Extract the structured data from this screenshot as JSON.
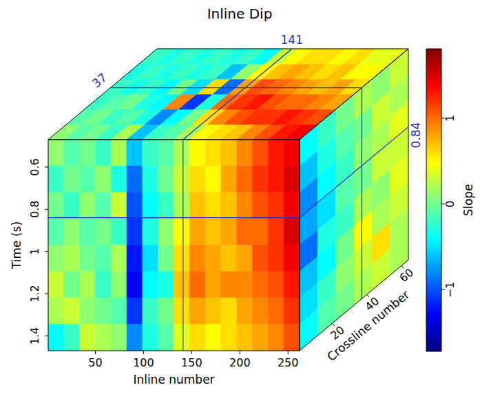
{
  "chart_data": {
    "type": "cube",
    "title": "Inline Dip",
    "x_label": "Inline number",
    "y_label": "Time (s)",
    "z_label": "Crossline number",
    "colorbar_label": "Slope",
    "xlim": [
      1,
      262
    ],
    "ylim": [
      0.47,
      1.47
    ],
    "zlim": [
      1,
      64
    ],
    "xticks": [
      50,
      100,
      150,
      200,
      250
    ],
    "yticks": [
      0.6,
      0.8,
      1,
      1.2,
      1.4
    ],
    "zticks": [
      20,
      40,
      60
    ],
    "color_range": [
      -1.72,
      1.81
    ],
    "color_ticks": [
      {
        "value": -1,
        "label": "−1"
      },
      0,
      1
    ],
    "slices": {
      "crossline": 37,
      "inline": 141,
      "time": 0.84
    },
    "cells": {
      "front": [
        [
          0.1,
          -0.1,
          0.0,
          -0.2,
          0.2,
          -0.6,
          -0.2,
          -0.1,
          0.2,
          0.5,
          0.6,
          0.7,
          0.9,
          1.1,
          1.3,
          1.4
        ],
        [
          -0.2,
          0.0,
          -0.1,
          0.1,
          -0.3,
          -0.9,
          -0.3,
          0.0,
          0.3,
          0.6,
          0.5,
          0.8,
          1.0,
          1.2,
          1.3,
          1.5
        ],
        [
          0.0,
          -0.2,
          0.1,
          -0.1,
          0.3,
          -1.0,
          -0.4,
          -0.2,
          0.2,
          0.7,
          0.6,
          0.7,
          0.9,
          1.1,
          1.2,
          1.4
        ],
        [
          -0.1,
          0.1,
          -0.1,
          0.0,
          -0.2,
          -1.1,
          -0.3,
          0.1,
          0.5,
          0.8,
          0.7,
          0.8,
          1.0,
          1.0,
          1.2,
          1.5
        ],
        [
          0.1,
          0.2,
          0.0,
          -0.1,
          0.2,
          -1.2,
          -0.5,
          0.0,
          0.6,
          0.9,
          0.8,
          0.7,
          0.8,
          1.1,
          1.2,
          1.4
        ],
        [
          0.3,
          0.0,
          0.2,
          -0.2,
          0.1,
          -1.3,
          -0.4,
          -0.3,
          0.7,
          1.0,
          0.8,
          0.9,
          0.9,
          1.0,
          1.1,
          1.3
        ],
        [
          0.2,
          0.3,
          0.1,
          0.0,
          -0.1,
          -1.1,
          -0.2,
          0.0,
          0.6,
          0.8,
          0.7,
          0.6,
          0.8,
          0.9,
          1.0,
          1.2
        ],
        [
          -0.4,
          -0.2,
          0.3,
          0.2,
          0.1,
          -0.8,
          -0.3,
          -0.1,
          0.4,
          0.6,
          0.5,
          0.6,
          0.7,
          0.8,
          0.9,
          1.1
        ]
      ],
      "top": [
        [
          0.1,
          -0.1,
          0.0,
          -0.2,
          0.2,
          -0.6,
          -0.2,
          -0.1,
          0.2,
          0.5,
          0.6,
          0.7,
          0.9,
          1.1,
          1.3,
          1.4
        ],
        [
          -0.1,
          0.0,
          -0.2,
          -0.1,
          -0.3,
          -0.8,
          -0.4,
          0.0,
          0.6,
          0.9,
          1.1,
          1.2,
          1.2,
          1.3,
          1.2,
          1.1
        ],
        [
          -0.2,
          -0.1,
          0.0,
          -0.3,
          -0.4,
          0.9,
          -1.1,
          -0.3,
          1.0,
          1.2,
          1.3,
          1.1,
          1.0,
          1.0,
          0.9,
          0.8
        ],
        [
          -0.2,
          -0.3,
          -0.2,
          -0.4,
          0.0,
          -0.5,
          0.6,
          -0.9,
          0.8,
          1.1,
          1.0,
          0.9,
          0.8,
          0.7,
          0.8,
          0.6
        ],
        [
          -0.3,
          -0.2,
          -0.3,
          -0.2,
          -0.3,
          -0.2,
          -0.6,
          0.1,
          0.5,
          0.7,
          0.8,
          0.7,
          0.6,
          0.7,
          0.5,
          0.5
        ],
        [
          -0.2,
          -0.3,
          -0.2,
          -0.3,
          -0.2,
          -0.3,
          -0.2,
          -0.4,
          0.3,
          0.5,
          0.6,
          0.6,
          0.5,
          0.6,
          0.4,
          0.4
        ]
      ],
      "side": [
        [
          -0.4,
          -0.2,
          0.0,
          0.2,
          0.1,
          0.3
        ],
        [
          -0.6,
          -0.3,
          -0.1,
          0.0,
          0.3,
          0.2
        ],
        [
          -0.8,
          -0.4,
          -0.2,
          0.1,
          0.2,
          0.4
        ],
        [
          -0.7,
          -0.5,
          -0.1,
          0.0,
          0.3,
          0.3
        ],
        [
          -0.9,
          -0.3,
          -0.2,
          0.2,
          0.1,
          0.4
        ],
        [
          -0.6,
          -0.4,
          0.0,
          0.5,
          0.2,
          0.3
        ],
        [
          -0.5,
          -0.2,
          0.1,
          0.3,
          0.6,
          0.2
        ],
        [
          -0.4,
          -0.1,
          0.0,
          0.2,
          0.3,
          0.2
        ]
      ]
    }
  }
}
